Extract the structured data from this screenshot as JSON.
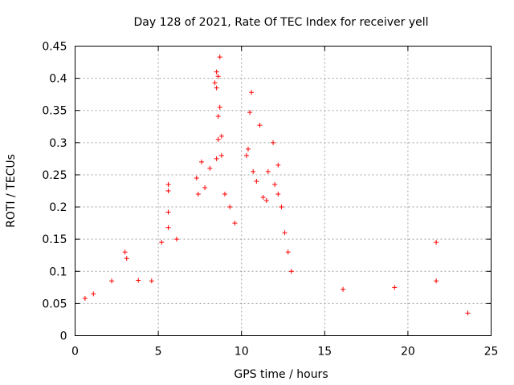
{
  "chart_data": {
    "type": "scatter",
    "title": "Day 128 of 2021, Rate Of TEC Index for receiver yell",
    "xlabel": "GPS time / hours",
    "ylabel": "ROTI / TECUs",
    "xlim": [
      0,
      25
    ],
    "ylim": [
      0,
      0.45
    ],
    "xticks": [
      0,
      5,
      10,
      15,
      20,
      25
    ],
    "xtick_labels": [
      "0",
      "5",
      "10",
      "15",
      "20",
      "25"
    ],
    "yticks": [
      0,
      0.05,
      0.1,
      0.15,
      0.2,
      0.25,
      0.3,
      0.35,
      0.4,
      0.45
    ],
    "ytick_labels": [
      "0",
      "0.05",
      "0.1",
      "0.15",
      "0.2",
      "0.25",
      "0.3",
      "0.35",
      "0.4",
      "0.45"
    ],
    "grid": true,
    "marker": "+",
    "color": "#ff0000",
    "series": [
      {
        "name": "ROTI",
        "points": [
          [
            8.7,
            0.433
          ],
          [
            8.5,
            0.41
          ],
          [
            8.6,
            0.403
          ],
          [
            8.4,
            0.393
          ],
          [
            8.5,
            0.385
          ],
          [
            10.6,
            0.378
          ],
          [
            8.7,
            0.355
          ],
          [
            10.5,
            0.347
          ],
          [
            8.6,
            0.341
          ],
          [
            11.1,
            0.327
          ],
          [
            8.8,
            0.31
          ],
          [
            8.6,
            0.305
          ],
          [
            11.9,
            0.3
          ],
          [
            10.4,
            0.29
          ],
          [
            10.3,
            0.28
          ],
          [
            8.8,
            0.28
          ],
          [
            8.5,
            0.275
          ],
          [
            12.2,
            0.265
          ],
          [
            11.6,
            0.255
          ],
          [
            10.7,
            0.255
          ],
          [
            21.7,
            0.145
          ],
          [
            21.7,
            0.085
          ],
          [
            19.2,
            0.075
          ],
          [
            16.1,
            0.072
          ],
          [
            23.6,
            0.035
          ],
          [
            5.6,
            0.235
          ],
          [
            5.6,
            0.225
          ],
          [
            5.6,
            0.192
          ],
          [
            5.6,
            0.168
          ],
          [
            5.2,
            0.145
          ],
          [
            3.0,
            0.13
          ],
          [
            3.1,
            0.12
          ],
          [
            1.1,
            0.065
          ],
          [
            0.6,
            0.058
          ],
          [
            2.2,
            0.085
          ],
          [
            3.8,
            0.086
          ],
          [
            4.6,
            0.085
          ],
          [
            6.1,
            0.15
          ],
          [
            7.3,
            0.245
          ],
          [
            7.4,
            0.22
          ],
          [
            7.6,
            0.27
          ],
          [
            7.8,
            0.23
          ],
          [
            8.1,
            0.26
          ],
          [
            9.0,
            0.22
          ],
          [
            9.3,
            0.2
          ],
          [
            9.6,
            0.175
          ],
          [
            10.9,
            0.24
          ],
          [
            11.3,
            0.215
          ],
          [
            11.5,
            0.21
          ],
          [
            12.0,
            0.235
          ],
          [
            12.2,
            0.22
          ],
          [
            12.4,
            0.2
          ],
          [
            12.6,
            0.16
          ],
          [
            12.8,
            0.13
          ],
          [
            13.0,
            0.1
          ]
        ]
      }
    ]
  }
}
